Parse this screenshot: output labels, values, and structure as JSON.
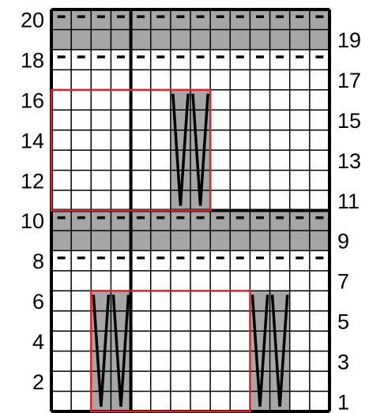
{
  "chart_data": {
    "type": "knitting-chart",
    "columns": 14,
    "rows": 20,
    "left_row_labels": [
      "2",
      "4",
      "6",
      "8",
      "10",
      "12",
      "14",
      "16",
      "18",
      "20"
    ],
    "right_row_labels": [
      "1",
      "3",
      "5",
      "7",
      "9",
      "11",
      "13",
      "15",
      "17",
      "19"
    ],
    "purl_rows": [
      9,
      10,
      19,
      20
    ],
    "purl_dash_rows": [
      8,
      10,
      18,
      20
    ],
    "shaded_regions": [
      {
        "col_start": 3,
        "col_end": 4,
        "row_start": 1,
        "row_end": 6
      },
      {
        "col_start": 11,
        "col_end": 12,
        "row_start": 1,
        "row_end": 6
      },
      {
        "col_start": 7,
        "col_end": 8,
        "row_start": 11,
        "row_end": 16
      }
    ],
    "cable_stitches": [
      {
        "col": 3,
        "row_start": 1,
        "row_end": 6
      },
      {
        "col": 4,
        "row_start": 1,
        "row_end": 6
      },
      {
        "col": 11,
        "row_start": 1,
        "row_end": 6
      },
      {
        "col": 12,
        "row_start": 1,
        "row_end": 6
      },
      {
        "col": 7,
        "row_start": 11,
        "row_end": 16
      },
      {
        "col": 8,
        "row_start": 11,
        "row_end": 16
      }
    ],
    "repeat_boxes": [
      {
        "col_start": 3,
        "col_end": 10,
        "row_start": 1,
        "row_end": 6
      },
      {
        "col_start": 1,
        "col_end": 8,
        "row_start": 11,
        "row_end": 16
      }
    ],
    "thick_vertical_after_columns": [
      4
    ],
    "thick_horizontal_after_rows": [
      10
    ],
    "colors": {
      "shade": "#a6a6a6",
      "grid": "#000000",
      "repeat_box": "#e0232b",
      "background": "#ffffff"
    }
  }
}
